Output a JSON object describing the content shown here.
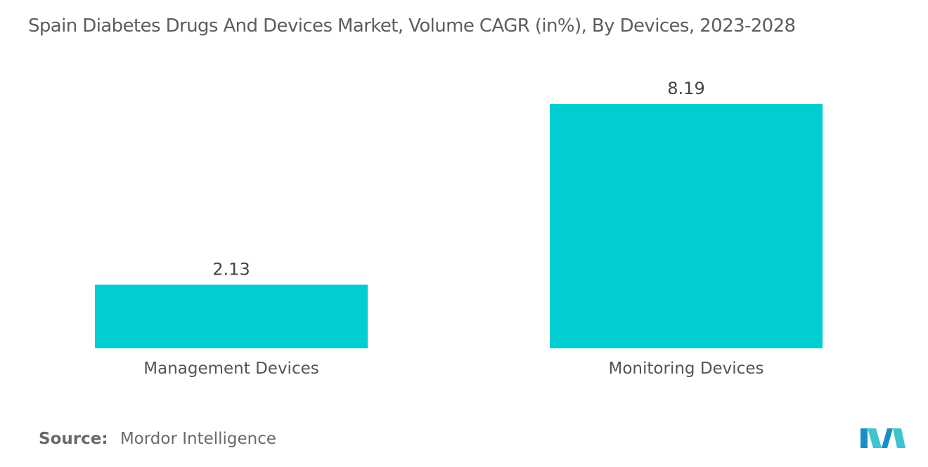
{
  "chart_data": {
    "type": "bar",
    "title": "Spain Diabetes Drugs And Devices Market, Volume CAGR (in%), By Devices, 2023-2028",
    "categories": [
      "Management Devices",
      "Monitoring Devices"
    ],
    "values": [
      2.13,
      8.19
    ],
    "value_labels": [
      "2.13",
      "8.19"
    ],
    "xlabel": "",
    "ylabel": "",
    "ylim": [
      0,
      10
    ],
    "grid": false,
    "legend": "none",
    "bar_color": "#00CED1"
  },
  "footer": {
    "source_label": "Source:",
    "source_value": "Mordor Intelligence"
  },
  "logo": {
    "icon": "mordor-intelligence-logo",
    "colors": [
      "#1a8fc6",
      "#3fc4cf"
    ]
  }
}
